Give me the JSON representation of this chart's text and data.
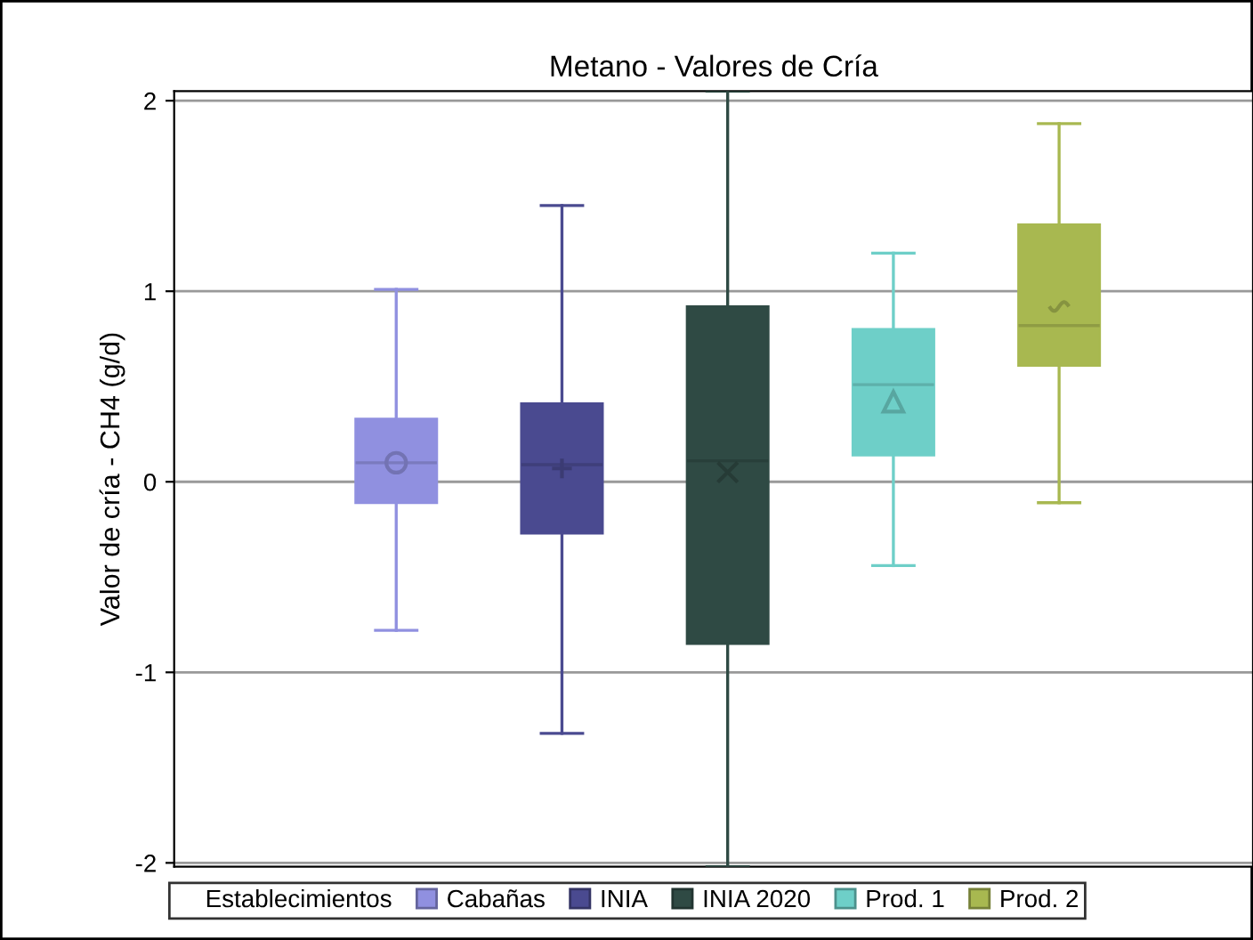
{
  "chart_data": {
    "type": "box",
    "title": "Metano - Valores de Cría",
    "ylabel": "Valor de cría - CH4 (g/d)",
    "legend_title": "Establecimientos",
    "categories": [
      null
    ],
    "series": [
      {
        "name": "Cabañas",
        "color": "#9090e0",
        "marker": "circle",
        "boxes": [
          {
            "low": -0.78,
            "q1": -0.11,
            "median": 0.1,
            "q3": 0.33,
            "high": 1.01,
            "mean": 0.1
          }
        ]
      },
      {
        "name": "INIA",
        "color": "#4a4a90",
        "marker": "plus",
        "boxes": [
          {
            "low": -1.32,
            "q1": -0.27,
            "median": 0.09,
            "q3": 0.41,
            "high": 1.45,
            "mean": 0.07
          }
        ]
      },
      {
        "name": "INIA 2020",
        "color": "#2f4a44",
        "marker": "x",
        "boxes": [
          {
            "low": -2.02,
            "q1": -0.85,
            "median": 0.11,
            "q3": 0.92,
            "high": 2.05,
            "mean": 0.05
          }
        ]
      },
      {
        "name": "Prod. 1",
        "color": "#6ecfc8",
        "marker": "triangle",
        "boxes": [
          {
            "low": -0.44,
            "q1": 0.14,
            "median": 0.51,
            "q3": 0.8,
            "high": 1.2,
            "mean": 0.42
          }
        ]
      },
      {
        "name": "Prod. 2",
        "color": "#a8b850",
        "marker": "tilde",
        "boxes": [
          {
            "low": -0.11,
            "q1": 0.61,
            "median": 0.82,
            "q3": 1.35,
            "high": 1.88,
            "mean": 0.92
          }
        ]
      }
    ],
    "ylim": [
      -2.02,
      2.05
    ],
    "yticks": [
      -2,
      -1,
      0,
      1,
      2
    ],
    "grid": "y",
    "legend": "bottom",
    "tick_labels": "y"
  }
}
